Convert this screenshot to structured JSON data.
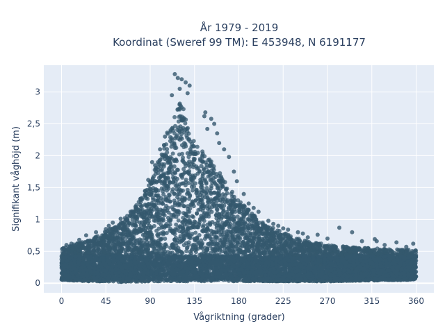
{
  "chart_data": {
    "type": "scatter",
    "title": "År 1979 - 2019",
    "subtitle": "Koordinat (Sweref 99 TM): E 453948, N 6191177",
    "xlabel": "Vågriktning (grader)",
    "ylabel": "Signifikant våghöjd (m)",
    "xlim": [
      -18,
      378
    ],
    "ylim": [
      -0.15,
      3.42
    ],
    "x_ticks": [
      0,
      45,
      90,
      135,
      180,
      225,
      270,
      315,
      360
    ],
    "x_tick_labels": [
      "0",
      "45",
      "90",
      "135",
      "180",
      "225",
      "270",
      "315",
      "360"
    ],
    "y_ticks": [
      0,
      0.5,
      1,
      1.5,
      2,
      2.5,
      3
    ],
    "y_tick_labels": [
      "0",
      "0,5",
      "1",
      "1,5",
      "2",
      "2,5",
      "3"
    ],
    "grid": true,
    "marker_color": "#34586e",
    "plot_background": "#e5ecf6",
    "envelope": {
      "x": [
        0,
        15,
        30,
        45,
        60,
        75,
        90,
        100,
        110,
        115,
        120,
        125,
        130,
        140,
        150,
        160,
        170,
        180,
        190,
        200,
        210,
        225,
        240,
        255,
        270,
        285,
        300,
        315,
        330,
        345,
        360
      ],
      "y_max": [
        0.55,
        0.62,
        0.7,
        0.82,
        0.95,
        1.2,
        1.6,
        2.0,
        2.5,
        2.75,
        2.85,
        2.7,
        2.35,
        2.1,
        2.0,
        1.75,
        1.5,
        1.3,
        1.15,
        1.0,
        0.9,
        0.8,
        0.7,
        0.65,
        0.6,
        0.58,
        0.56,
        0.55,
        0.54,
        0.53,
        0.52
      ],
      "y_min": [
        0.05,
        0.04,
        0.03,
        0.03,
        0.02,
        0.02,
        0.03,
        0.03,
        0.03,
        0.03,
        0.03,
        0.03,
        0.03,
        0.03,
        0.03,
        0.03,
        0.03,
        0.03,
        0.03,
        0.03,
        0.03,
        0.03,
        0.03,
        0.03,
        0.03,
        0.03,
        0.04,
        0.04,
        0.05,
        0.05,
        0.06
      ]
    },
    "outliers": [
      [
        115,
        3.28
      ],
      [
        118,
        3.22
      ],
      [
        122,
        3.2
      ],
      [
        126,
        3.15
      ],
      [
        130,
        3.1
      ],
      [
        120,
        3.05
      ],
      [
        112,
        2.95
      ],
      [
        128,
        2.98
      ],
      [
        145,
        2.62
      ],
      [
        146,
        2.68
      ],
      [
        152,
        2.58
      ],
      [
        155,
        2.5
      ],
      [
        148,
        2.42
      ],
      [
        158,
        2.35
      ],
      [
        160,
        2.2
      ],
      [
        165,
        2.1
      ],
      [
        170,
        1.98
      ],
      [
        175,
        1.75
      ],
      [
        178,
        1.6
      ],
      [
        185,
        1.4
      ],
      [
        190,
        1.25
      ],
      [
        195,
        1.18
      ],
      [
        200,
        1.12
      ],
      [
        210,
        0.98
      ],
      [
        215,
        0.93
      ],
      [
        220,
        0.9
      ],
      [
        225,
        0.86
      ],
      [
        230,
        0.84
      ],
      [
        240,
        0.8
      ],
      [
        245,
        0.78
      ],
      [
        250,
        0.72
      ],
      [
        260,
        0.76
      ],
      [
        270,
        0.7
      ],
      [
        282,
        0.87
      ],
      [
        295,
        0.8
      ],
      [
        305,
        0.66
      ],
      [
        318,
        0.69
      ],
      [
        320,
        0.66
      ],
      [
        328,
        0.6
      ],
      [
        340,
        0.64
      ],
      [
        350,
        0.57
      ],
      [
        357,
        0.62
      ],
      [
        60,
        1.01
      ],
      [
        65,
        1.0
      ],
      [
        70,
        1.12
      ],
      [
        75,
        1.2
      ],
      [
        80,
        1.32
      ],
      [
        85,
        1.45
      ],
      [
        88,
        1.62
      ],
      [
        92,
        1.9
      ],
      [
        95,
        1.85
      ],
      [
        98,
        1.78
      ],
      [
        100,
        2.1
      ],
      [
        105,
        2.3
      ],
      [
        45,
        0.85
      ],
      [
        48,
        0.9
      ],
      [
        35,
        0.8
      ],
      [
        25,
        0.75
      ],
      [
        5,
        0.6
      ],
      [
        18,
        0.68
      ],
      [
        2,
        0.55
      ],
      [
        10,
        0.62
      ],
      [
        55,
        0.88
      ],
      [
        52,
        0.95
      ]
    ]
  }
}
